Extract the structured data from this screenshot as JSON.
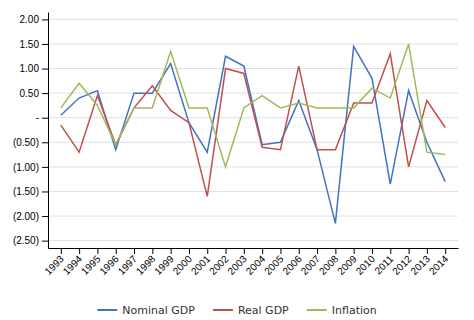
{
  "chart_data": {
    "type": "line",
    "x": [
      1993,
      1994,
      1995,
      1996,
      1997,
      1998,
      1999,
      2000,
      2001,
      2002,
      2003,
      2004,
      2005,
      2006,
      2007,
      2008,
      2009,
      2010,
      2011,
      2012,
      2013,
      2014
    ],
    "series": [
      {
        "name": "Nominal GDP",
        "color": "#4472c4",
        "values": [
          0.05,
          0.4,
          0.55,
          -0.65,
          0.5,
          0.5,
          1.1,
          -0.1,
          -0.7,
          1.25,
          1.05,
          -0.55,
          -0.5,
          0.35,
          -0.65,
          -2.15,
          1.45,
          0.8,
          -1.35,
          0.55,
          -0.5,
          -1.3
        ]
      },
      {
        "name": "Real GDP",
        "color": "#c0504d",
        "values": [
          -0.15,
          -0.7,
          0.45,
          -0.55,
          0.2,
          0.65,
          0.15,
          -0.1,
          -1.6,
          1.0,
          0.9,
          -0.6,
          -0.65,
          1.05,
          -0.65,
          -0.65,
          0.3,
          0.3,
          1.3,
          -1.0,
          0.35,
          -0.2
        ]
      },
      {
        "name": "Inflation",
        "color": "#9bbb59",
        "values": [
          0.2,
          0.7,
          0.25,
          -0.55,
          0.2,
          0.2,
          1.35,
          0.2,
          0.2,
          -1.0,
          0.2,
          0.45,
          0.2,
          0.3,
          0.2,
          0.2,
          0.2,
          0.6,
          0.4,
          1.5,
          -0.7,
          -0.75
        ]
      }
    ],
    "xlim": [
      1992.3,
      2014.7
    ],
    "xticks": [
      1993,
      1994,
      1995,
      1996,
      1997,
      1998,
      1999,
      2000,
      2001,
      2002,
      2003,
      2004,
      2005,
      2006,
      2007,
      2008,
      2009,
      2010,
      2011,
      2012,
      2013,
      2014
    ],
    "ylim": [
      -2.65,
      2.15
    ],
    "yticks": [
      {
        "value": 2.0,
        "label": "2.00"
      },
      {
        "value": 1.5,
        "label": "1.50"
      },
      {
        "value": 1.0,
        "label": "1.00"
      },
      {
        "value": 0.5,
        "label": "0.50"
      },
      {
        "value": 0.0,
        "label": "-"
      },
      {
        "value": -0.5,
        "label": "(0.50)"
      },
      {
        "value": -1.0,
        "label": "(1.00)"
      },
      {
        "value": -1.5,
        "label": "(1.50)"
      },
      {
        "value": -2.0,
        "label": "(2.00)"
      },
      {
        "value": -2.5,
        "label": "(2.50)"
      }
    ],
    "grid": true,
    "legend": "bottom"
  }
}
